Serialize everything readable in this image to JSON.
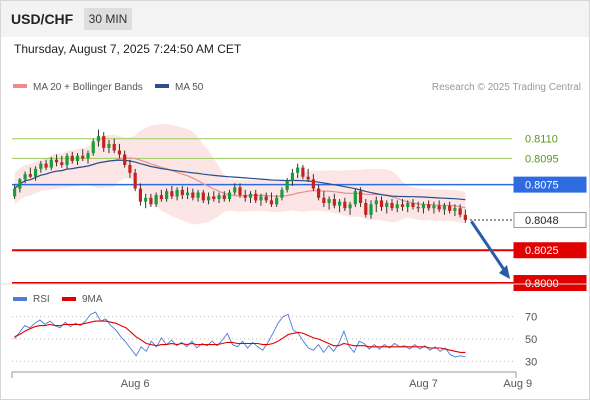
{
  "header": {
    "symbol": "USD/CHF",
    "timeframe": "30 MIN"
  },
  "datetime": "Thursday, August 7, 2025 7:24:50 AM CET",
  "chart_data": [
    {
      "type": "candlestick",
      "legend": [
        {
          "label": "MA 20 + Bollinger Bands",
          "color": "#f08a8a"
        },
        {
          "label": "MA 50",
          "color": "#2a4f8c"
        }
      ],
      "credit": "Research © 2025 Trading Central",
      "ylim": [
        0.79985,
        0.81395
      ],
      "levels": [
        {
          "label": "0.8110",
          "value": 0.811,
          "kind": "resistance-minor",
          "color": "#9acd5a"
        },
        {
          "label": "0.8095",
          "value": 0.8095,
          "kind": "resistance-minor",
          "color": "#9acd5a"
        },
        {
          "label": "0.8075",
          "value": 0.8075,
          "kind": "pivot",
          "color": "#2e6ae0"
        },
        {
          "label": "0.8048",
          "value": 0.8048,
          "kind": "last-price",
          "color": "#333333"
        },
        {
          "label": "0.8025",
          "value": 0.8025,
          "kind": "support",
          "color": "#e00000"
        },
        {
          "label": "0.8000",
          "value": 0.8,
          "kind": "support",
          "color": "#e00000"
        }
      ],
      "forecast_arrow": {
        "from": 0.8047,
        "to": 0.8,
        "direction": "down",
        "color": "#2a5aa8"
      },
      "candles": [
        [
          0.8066,
          0.8075,
          0.8064,
          0.8072
        ],
        [
          0.8072,
          0.808,
          0.8069,
          0.8079
        ],
        [
          0.8079,
          0.8085,
          0.8076,
          0.8083
        ],
        [
          0.8083,
          0.8088,
          0.808,
          0.8081
        ],
        [
          0.8081,
          0.8089,
          0.8078,
          0.8087
        ],
        [
          0.8087,
          0.8093,
          0.8084,
          0.8091
        ],
        [
          0.8091,
          0.8094,
          0.8086,
          0.8088
        ],
        [
          0.8088,
          0.8096,
          0.8086,
          0.8094
        ],
        [
          0.8094,
          0.8098,
          0.8089,
          0.8092
        ],
        [
          0.8092,
          0.8097,
          0.8088,
          0.809
        ],
        [
          0.809,
          0.8099,
          0.8087,
          0.8097
        ],
        [
          0.8097,
          0.81,
          0.8091,
          0.8093
        ],
        [
          0.8093,
          0.8099,
          0.809,
          0.8097
        ],
        [
          0.8097,
          0.8102,
          0.8093,
          0.8095
        ],
        [
          0.8095,
          0.8101,
          0.8091,
          0.8099
        ],
        [
          0.8099,
          0.811,
          0.8097,
          0.8108
        ],
        [
          0.8108,
          0.8117,
          0.8104,
          0.8112
        ],
        [
          0.8112,
          0.8115,
          0.81,
          0.8103
        ],
        [
          0.8103,
          0.8109,
          0.8099,
          0.8106
        ],
        [
          0.8106,
          0.811,
          0.8099,
          0.8101
        ],
        [
          0.8101,
          0.8106,
          0.8095,
          0.8098
        ],
        [
          0.8098,
          0.8101,
          0.8088,
          0.809
        ],
        [
          0.809,
          0.8094,
          0.808,
          0.8084
        ],
        [
          0.8084,
          0.8087,
          0.807,
          0.8072
        ],
        [
          0.8072,
          0.8076,
          0.8059,
          0.8062
        ],
        [
          0.8062,
          0.8068,
          0.8057,
          0.8065
        ],
        [
          0.8065,
          0.8068,
          0.8058,
          0.806
        ],
        [
          0.806,
          0.8069,
          0.8058,
          0.8067
        ],
        [
          0.8067,
          0.8071,
          0.8062,
          0.8064
        ],
        [
          0.8064,
          0.8072,
          0.8062,
          0.807
        ],
        [
          0.807,
          0.8074,
          0.8064,
          0.8066
        ],
        [
          0.8066,
          0.8073,
          0.8063,
          0.8071
        ],
        [
          0.8071,
          0.8074,
          0.8064,
          0.8067
        ],
        [
          0.8067,
          0.8073,
          0.8064,
          0.8069
        ],
        [
          0.8069,
          0.8072,
          0.8063,
          0.8065
        ],
        [
          0.8065,
          0.8071,
          0.8062,
          0.8069
        ],
        [
          0.8069,
          0.8071,
          0.8061,
          0.8063
        ],
        [
          0.8063,
          0.8069,
          0.806,
          0.8066
        ],
        [
          0.8066,
          0.807,
          0.8062,
          0.8064
        ],
        [
          0.8064,
          0.8069,
          0.8061,
          0.8067
        ],
        [
          0.8067,
          0.807,
          0.8062,
          0.8064
        ],
        [
          0.8064,
          0.8071,
          0.8062,
          0.8069
        ],
        [
          0.8069,
          0.8076,
          0.8067,
          0.8073
        ],
        [
          0.8073,
          0.8076,
          0.8065,
          0.8067
        ],
        [
          0.8067,
          0.8071,
          0.8062,
          0.8065
        ],
        [
          0.8065,
          0.807,
          0.8061,
          0.8068
        ],
        [
          0.8068,
          0.8071,
          0.8061,
          0.8063
        ],
        [
          0.8063,
          0.8068,
          0.8059,
          0.8066
        ],
        [
          0.8066,
          0.8069,
          0.8061,
          0.8063
        ],
        [
          0.8063,
          0.8069,
          0.8058,
          0.806
        ],
        [
          0.806,
          0.8067,
          0.8058,
          0.8065
        ],
        [
          0.8065,
          0.8073,
          0.8063,
          0.8071
        ],
        [
          0.8071,
          0.808,
          0.8069,
          0.8078
        ],
        [
          0.8078,
          0.8087,
          0.8074,
          0.8084
        ],
        [
          0.8084,
          0.8091,
          0.808,
          0.8088
        ],
        [
          0.8088,
          0.809,
          0.8079,
          0.8081
        ],
        [
          0.8081,
          0.8087,
          0.8077,
          0.8079
        ],
        [
          0.8079,
          0.8083,
          0.807,
          0.8072
        ],
        [
          0.8072,
          0.8075,
          0.8063,
          0.8065
        ],
        [
          0.8065,
          0.807,
          0.8058,
          0.8061
        ],
        [
          0.8061,
          0.8066,
          0.8056,
          0.8064
        ],
        [
          0.8064,
          0.8068,
          0.8057,
          0.8059
        ],
        [
          0.8059,
          0.8064,
          0.8054,
          0.8062
        ],
        [
          0.8062,
          0.8065,
          0.8055,
          0.8057
        ],
        [
          0.8057,
          0.8062,
          0.8052,
          0.806
        ],
        [
          0.806,
          0.8072,
          0.8058,
          0.807
        ],
        [
          0.807,
          0.8073,
          0.8058,
          0.8061
        ],
        [
          0.8061,
          0.8064,
          0.805,
          0.8052
        ],
        [
          0.8052,
          0.8063,
          0.8049,
          0.806
        ],
        [
          0.806,
          0.8066,
          0.8054,
          0.8063
        ],
        [
          0.8063,
          0.8066,
          0.8055,
          0.8058
        ],
        [
          0.8058,
          0.8063,
          0.8053,
          0.8061
        ],
        [
          0.8061,
          0.8064,
          0.8055,
          0.8057
        ],
        [
          0.8057,
          0.8063,
          0.8054,
          0.806
        ],
        [
          0.806,
          0.8064,
          0.8055,
          0.8058
        ],
        [
          0.8058,
          0.8063,
          0.8054,
          0.8061
        ],
        [
          0.8061,
          0.8064,
          0.8056,
          0.8058
        ],
        [
          0.8058,
          0.8062,
          0.8054,
          0.8057
        ],
        [
          0.8057,
          0.8062,
          0.8053,
          0.806
        ],
        [
          0.806,
          0.8063,
          0.8055,
          0.8057
        ],
        [
          0.8057,
          0.8062,
          0.8053,
          0.8059
        ],
        [
          0.8059,
          0.8063,
          0.8054,
          0.8056
        ],
        [
          0.8056,
          0.8061,
          0.8052,
          0.8059
        ],
        [
          0.8059,
          0.8062,
          0.8053,
          0.8055
        ],
        [
          0.8055,
          0.806,
          0.8051,
          0.8057
        ],
        [
          0.8057,
          0.806,
          0.805,
          0.8052
        ],
        [
          0.8052,
          0.8056,
          0.8046,
          0.8048
        ]
      ],
      "x_ticks": [
        {
          "label": "Aug 6",
          "index": 23
        },
        {
          "label": "Aug 7",
          "index": 78
        },
        {
          "label": "Aug 9",
          "index": 96
        }
      ]
    },
    {
      "type": "line",
      "legend": [
        {
          "label": "RSI",
          "color": "#4f7ad8"
        },
        {
          "label": "9MA",
          "color": "#e00000"
        }
      ],
      "ylim": [
        25,
        75
      ],
      "y_ticks": [
        70,
        50,
        30
      ],
      "series": [
        {
          "name": "RSI",
          "color": "#4f7ad8",
          "values": [
            50,
            56,
            62,
            60,
            64,
            67,
            63,
            66,
            62,
            60,
            65,
            61,
            64,
            62,
            66,
            72,
            74,
            66,
            68,
            62,
            58,
            52,
            47,
            41,
            35,
            43,
            39,
            48,
            43,
            51,
            45,
            49,
            44,
            47,
            43,
            48,
            42,
            46,
            44,
            48,
            44,
            49,
            55,
            45,
            43,
            48,
            42,
            47,
            43,
            40,
            47,
            55,
            64,
            70,
            72,
            58,
            55,
            48,
            42,
            40,
            45,
            38,
            44,
            39,
            46,
            57,
            44,
            38,
            48,
            46,
            41,
            45,
            41,
            45,
            42,
            46,
            43,
            44,
            41,
            45,
            41,
            44,
            40,
            43,
            39,
            42,
            36,
            34,
            35,
            34
          ]
        },
        {
          "name": "9MA",
          "color": "#e00000",
          "values": [
            52,
            54,
            57,
            59,
            61,
            62,
            62,
            63,
            62,
            62,
            63,
            63,
            63,
            63,
            64,
            65,
            66,
            66,
            66,
            65,
            64,
            62,
            60,
            56,
            52,
            49,
            46,
            45,
            44,
            45,
            45,
            46,
            45,
            46,
            45,
            46,
            45,
            45,
            45,
            45,
            45,
            46,
            47,
            47,
            46,
            46,
            46,
            46,
            46,
            45,
            45,
            46,
            48,
            51,
            54,
            55,
            56,
            55,
            53,
            51,
            50,
            48,
            46,
            44,
            44,
            46,
            45,
            44,
            44,
            44,
            43,
            43,
            43,
            43,
            43,
            43,
            43,
            43,
            43,
            43,
            43,
            43,
            42,
            42,
            42,
            41,
            40,
            39,
            38,
            38
          ]
        }
      ]
    }
  ]
}
